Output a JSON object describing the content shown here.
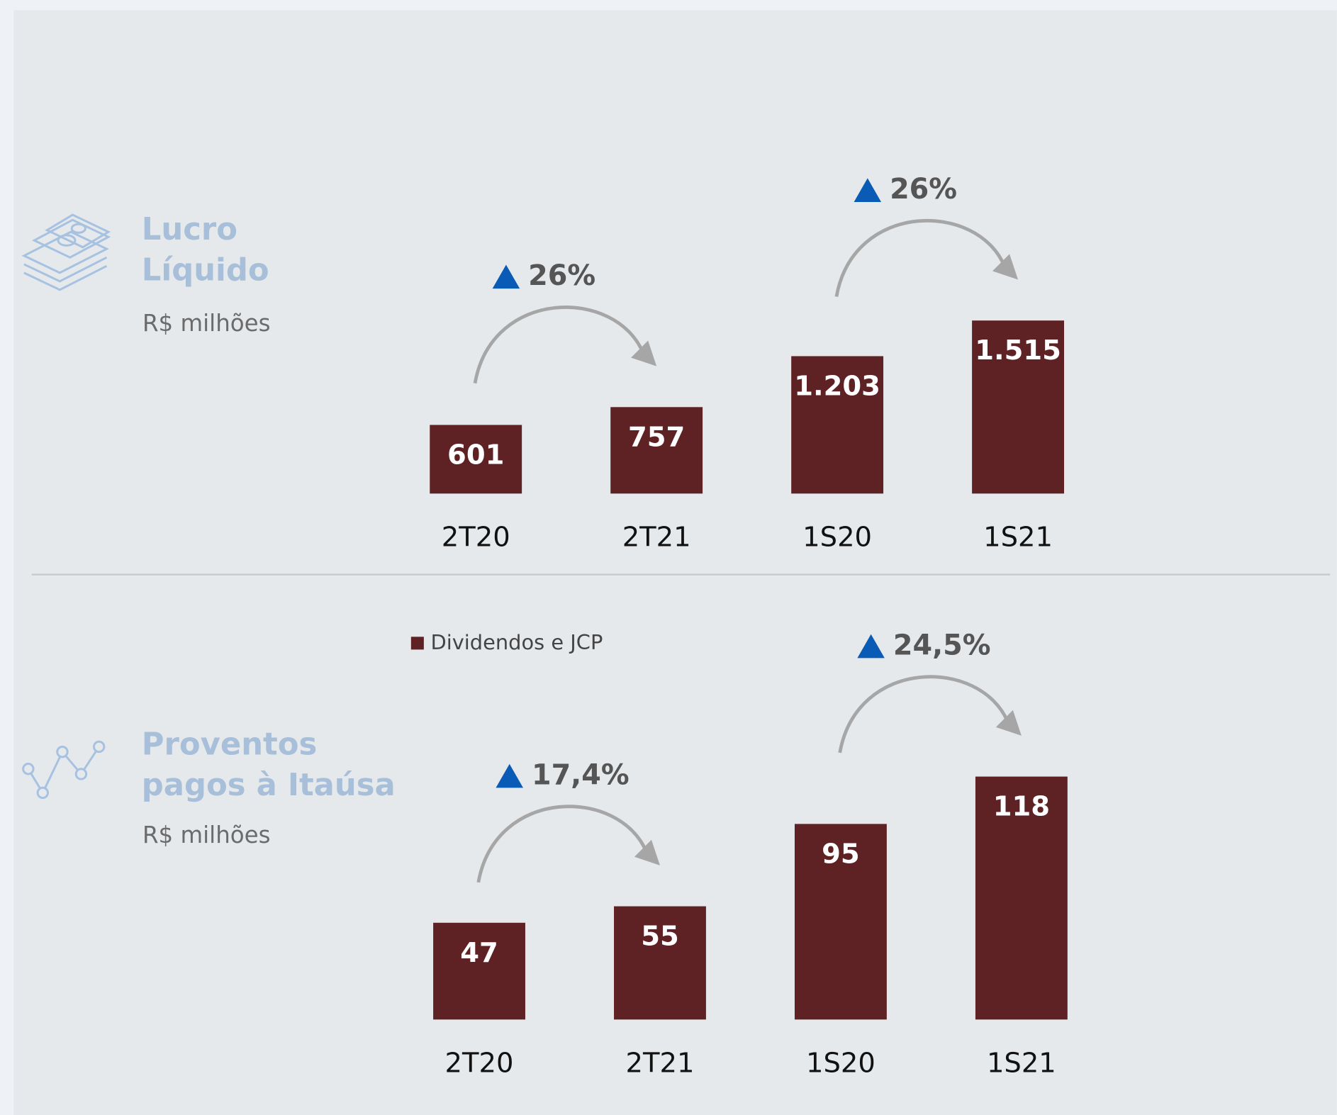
{
  "chart_data": [
    {
      "type": "bar",
      "title": "Lucro Líquido",
      "subtitle": "R$ milhões",
      "categories": [
        "2T20",
        "2T21",
        "1S20",
        "1S21"
      ],
      "values": [
        601,
        757,
        1203,
        1515
      ],
      "value_labels": [
        "601",
        "757",
        "1.203",
        "1.515"
      ],
      "color": "#5f2224",
      "annotations": [
        "26%",
        "26%"
      ]
    },
    {
      "type": "bar",
      "title": "Proventos pagos à Itaúsa",
      "subtitle": "R$ milhões",
      "legend": "Dividendos e JCP",
      "categories": [
        "2T20",
        "2T21",
        "1S20",
        "1S21"
      ],
      "values": [
        47,
        55,
        95,
        118
      ],
      "value_labels": [
        "47",
        "55",
        "95",
        "118"
      ],
      "color": "#5f2224",
      "annotations": [
        "17,4%",
        "24,5%"
      ]
    }
  ]
}
